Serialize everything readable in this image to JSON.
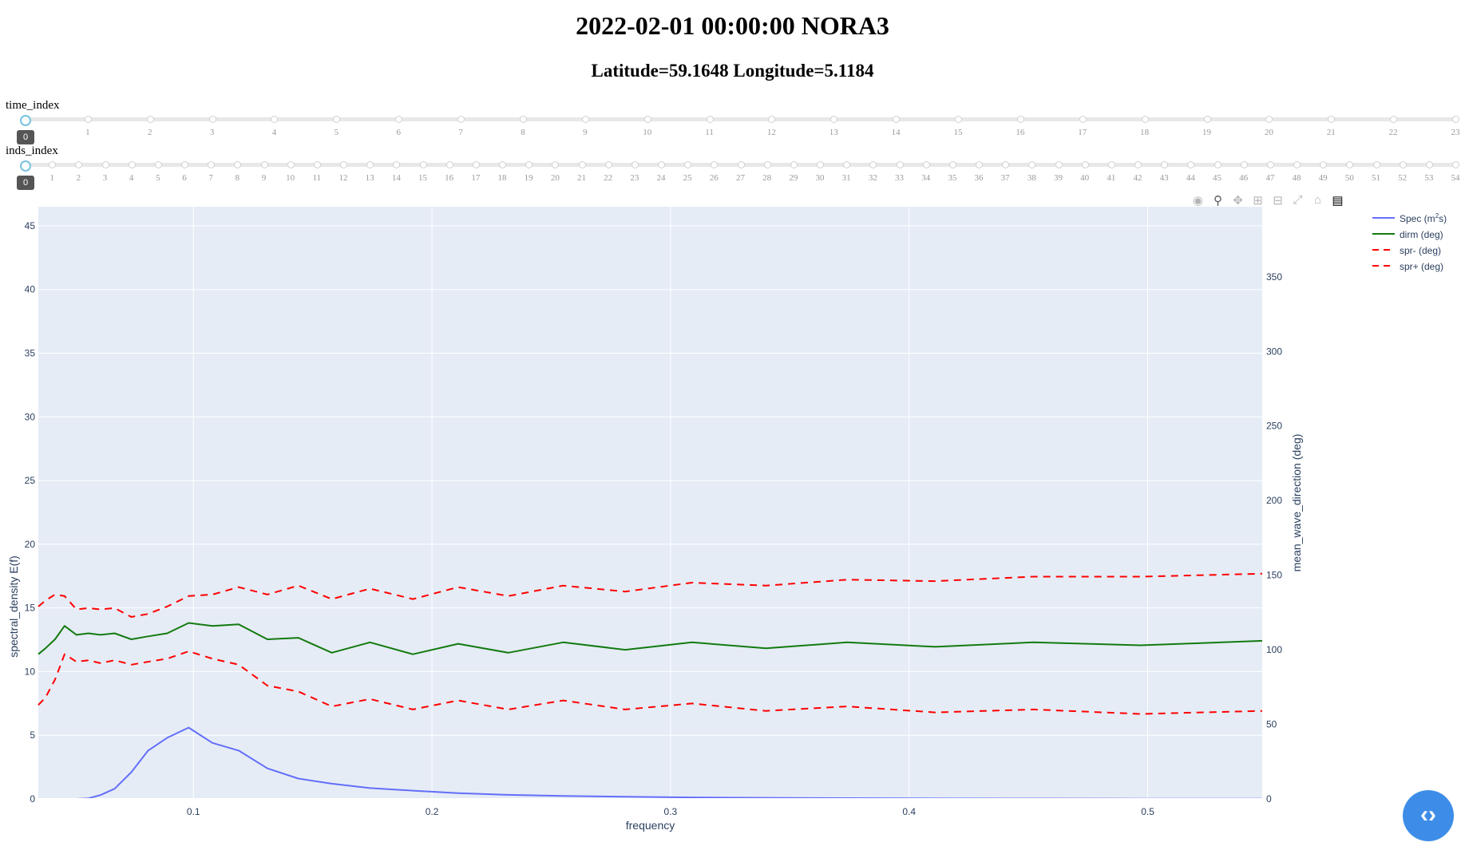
{
  "header": {
    "title": "2022-02-01 00:00:00 NORA3",
    "subtitle": "Latitude=59.1648 Longitude=5.1184"
  },
  "sliders": {
    "time_index": {
      "label": "time_index",
      "value": "0",
      "max": 23
    },
    "inds_index": {
      "label": "inds_index",
      "value": "0",
      "max": 54
    }
  },
  "toolbar": {
    "icons": [
      "camera-icon",
      "zoom-icon",
      "pan-icon",
      "zoom-in-icon",
      "zoom-out-icon",
      "autoscale-icon",
      "reset-axes-icon",
      "plotly-logo-icon"
    ]
  },
  "colors": {
    "plot_bg": "#e5ecf6",
    "spec": "#636efa",
    "dirm": "#137a0f",
    "spr": "#ff0000"
  },
  "chart_data": {
    "type": "line",
    "xlabel": "frequency",
    "ylabel": "spectral_density E(f)",
    "y2label": "mean_wave_direction (deg)",
    "xlim": [
      0.035,
      0.548
    ],
    "ylim": [
      0,
      46.5
    ],
    "y2lim": [
      0,
      397
    ],
    "xticks": [
      0.1,
      0.2,
      0.3,
      0.4,
      0.5
    ],
    "xtick_labels": [
      "0.1",
      "0.2",
      "0.3",
      "0.4",
      "0.5"
    ],
    "yticks": [
      0,
      5,
      10,
      15,
      20,
      25,
      30,
      35,
      40,
      45
    ],
    "y2ticks": [
      0,
      50,
      100,
      150,
      200,
      250,
      300,
      350
    ],
    "legend_labels": [
      "Spec (m",
      "s)",
      "dirm (deg)",
      "spr- (deg)",
      "spr+ (deg)"
    ],
    "x": [
      0.035,
      0.038,
      0.042,
      0.046,
      0.051,
      0.056,
      0.061,
      0.067,
      0.074,
      0.081,
      0.089,
      0.098,
      0.108,
      0.119,
      0.131,
      0.144,
      0.158,
      0.174,
      0.192,
      0.211,
      0.232,
      0.255,
      0.281,
      0.309,
      0.34,
      0.374,
      0.411,
      0.452,
      0.497,
      0.548
    ],
    "series": [
      {
        "name": "Spec",
        "axis": "y",
        "style": "solid",
        "values": [
          0.0,
          0.0,
          0.0,
          0.0,
          0.0,
          0.05,
          0.3,
          0.8,
          2.1,
          3.8,
          4.8,
          5.6,
          4.4,
          3.8,
          2.4,
          1.6,
          1.2,
          0.85,
          0.65,
          0.45,
          0.32,
          0.24,
          0.17,
          0.12,
          0.09,
          0.06,
          0.04,
          0.03,
          0.02,
          0.01
        ]
      },
      {
        "name": "dirm",
        "axis": "y2",
        "style": "solid",
        "values": [
          97,
          101,
          107,
          116,
          110,
          111,
          110,
          111,
          107,
          109,
          111,
          118,
          116,
          117,
          107,
          108,
          98,
          105,
          97,
          104,
          98,
          105,
          100,
          105,
          101,
          105,
          102,
          105,
          103,
          106
        ]
      },
      {
        "name": "spr-",
        "axis": "y2",
        "style": "dash",
        "values": [
          63,
          68,
          80,
          97,
          92,
          93,
          91,
          93,
          90,
          92,
          94,
          99,
          94,
          90,
          76,
          72,
          62,
          67,
          60,
          66,
          60,
          66,
          60,
          64,
          59,
          62,
          58,
          60,
          57,
          59
        ]
      },
      {
        "name": "spr+",
        "axis": "y2",
        "style": "dash",
        "values": [
          129,
          133,
          137,
          136,
          127,
          128,
          127,
          128,
          122,
          124,
          129,
          136,
          137,
          142,
          137,
          143,
          134,
          141,
          134,
          142,
          136,
          143,
          139,
          145,
          143,
          147,
          146,
          149,
          149,
          151
        ]
      }
    ]
  }
}
